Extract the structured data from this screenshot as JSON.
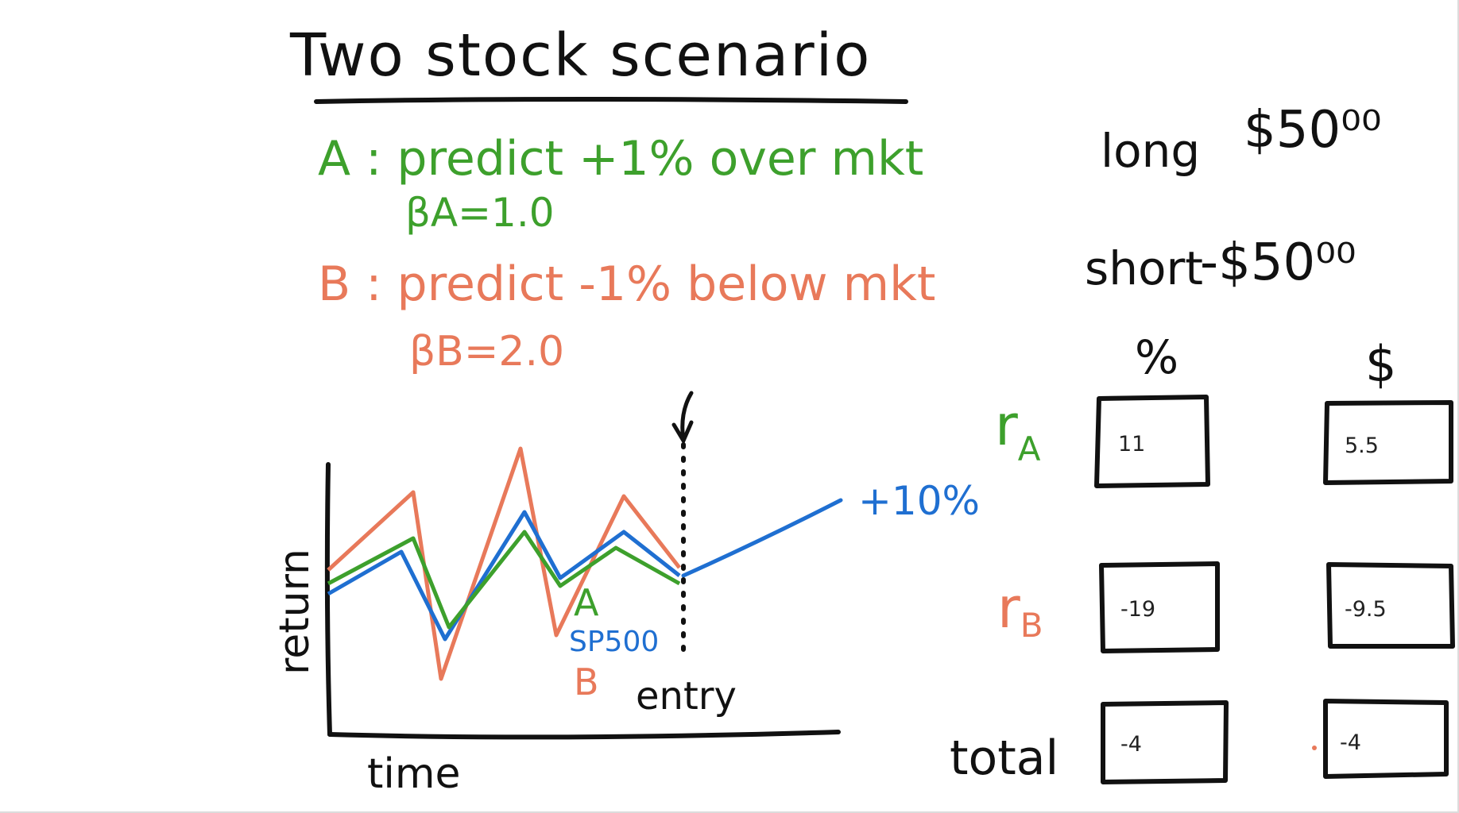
{
  "title": "Two stock scenario",
  "stock_a": {
    "line": "A : predict +1% over mkt",
    "beta": "βA=1.0",
    "color": "#3da02c"
  },
  "stock_b": {
    "line": "B : predict -1% below mkt",
    "beta": "βB=2.0",
    "color": "#e8795a"
  },
  "positions": {
    "long": "long",
    "long_amount": "$50⁰⁰",
    "short": "short",
    "short_amount": "-$50⁰⁰"
  },
  "table": {
    "col_pct": "%",
    "col_dollar": "$",
    "row_a_label": "rA",
    "row_b_label": "rB",
    "row_total_label": "total",
    "row_a_pct": "11",
    "row_a_dollar": "5.5",
    "row_b_pct": "-19",
    "row_b_dollar": "-9.5",
    "row_total_pct": "-4",
    "row_total_dollar": "-4"
  },
  "graph": {
    "ylabel": "return",
    "xlabel": "time",
    "label_a": "A",
    "label_sp": "SP500",
    "label_b": "B",
    "entry": "entry",
    "gain": "+10%",
    "color_sp": "#1f6fd1"
  }
}
